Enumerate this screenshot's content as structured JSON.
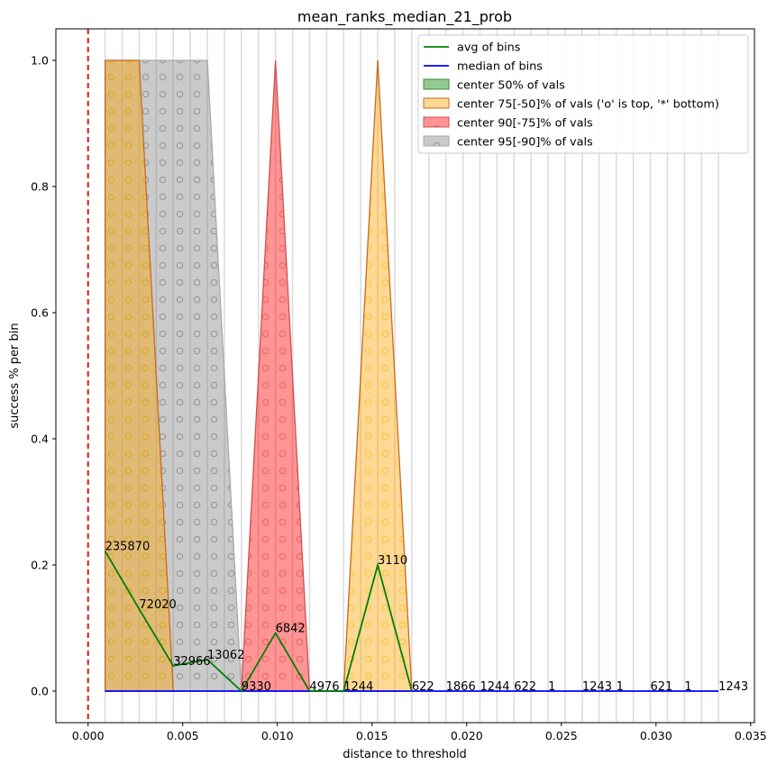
{
  "chart_data": {
    "type": "area",
    "title": "mean_ranks_median_21_prob",
    "xlabel": "distance to threshold",
    "ylabel": "success % per bin",
    "xlim": [
      -0.0017,
      0.0352
    ],
    "ylim": [
      -0.05,
      1.05
    ],
    "x_ticks": [
      0.0,
      0.005,
      0.01,
      0.015,
      0.02,
      0.025,
      0.03,
      0.035
    ],
    "x_tick_labels": [
      "0.000",
      "0.005",
      "0.010",
      "0.015",
      "0.020",
      "0.025",
      "0.030",
      "0.035"
    ],
    "y_ticks": [
      0.0,
      0.2,
      0.4,
      0.6,
      0.8,
      1.0
    ],
    "y_tick_labels": [
      "0.0",
      "0.2",
      "0.4",
      "0.6",
      "0.8",
      "1.0"
    ],
    "threshold_line_x": 0.0,
    "bin_gridlines": [
      0.0009,
      0.0018,
      0.0027,
      0.0036,
      0.0045,
      0.0054,
      0.0063,
      0.0072,
      0.0081,
      0.009,
      0.0099,
      0.0108,
      0.0117,
      0.0126,
      0.0135,
      0.0144,
      0.0153,
      0.0162,
      0.0171,
      0.018,
      0.0189,
      0.0198,
      0.0207,
      0.0216,
      0.0225,
      0.0234,
      0.0243,
      0.0252,
      0.0261,
      0.027,
      0.0279,
      0.0288,
      0.0297,
      0.0306,
      0.0315,
      0.0324,
      0.0333
    ],
    "legend_position": "top-right",
    "legend": [
      {
        "label": "avg of bins",
        "kind": "line",
        "color": "#008000"
      },
      {
        "label": "median of bins",
        "kind": "line",
        "color": "#0000ff"
      },
      {
        "label": "center 50% of vals",
        "kind": "patch",
        "color": "#008000"
      },
      {
        "label": "center 75[-50]% of vals ('o' is top, '*' bottom)",
        "kind": "patch",
        "color": "#ffa500"
      },
      {
        "label": "center 90[-75]% of vals",
        "kind": "patch",
        "color": "#ff0000"
      },
      {
        "label": "center 95[-90]% of vals",
        "kind": "patch",
        "color": "#808080"
      }
    ],
    "series": [
      {
        "name": "avg of bins",
        "color": "#008000",
        "x": [
          0.0009,
          0.0027,
          0.0045,
          0.0063,
          0.0081,
          0.0099,
          0.0117,
          0.0135,
          0.0153,
          0.0171
        ],
        "y": [
          0.222,
          0.13,
          0.04,
          0.05,
          0.0,
          0.092,
          0.0,
          0.0,
          0.2,
          0.0
        ]
      },
      {
        "name": "median of bins",
        "color": "#0000ff",
        "x": [
          0.0009,
          0.0333
        ],
        "y": [
          0.0,
          0.0
        ]
      }
    ],
    "bands": [
      {
        "name": "center 95[-90]% of vals",
        "color": "#808080",
        "points": [
          [
            0.0009,
            1.0
          ],
          [
            0.0063,
            1.0
          ],
          [
            0.0081,
            0.0
          ],
          [
            0.0009,
            0.0
          ]
        ]
      },
      {
        "name": "center 75[-50]% of vals ('o' is top, '*' bottom)",
        "color": "#ffa500",
        "points": [
          [
            0.0009,
            1.0
          ],
          [
            0.0027,
            1.0
          ],
          [
            0.0045,
            0.0
          ],
          [
            0.0009,
            0.0
          ]
        ]
      },
      {
        "name": "center 90[-75]% of vals",
        "color": "#ff0000",
        "points": [
          [
            0.0081,
            0.0
          ],
          [
            0.0099,
            1.0
          ],
          [
            0.0117,
            0.0
          ]
        ]
      },
      {
        "name": "center 75[-50]% of vals ('o' is top, '*' bottom)",
        "color": "#ffa500",
        "points": [
          [
            0.0135,
            0.0
          ],
          [
            0.0153,
            1.0
          ],
          [
            0.0171,
            0.0
          ]
        ]
      }
    ],
    "annotations": [
      {
        "x": 0.0009,
        "y": 0.222,
        "text": "235870"
      },
      {
        "x": 0.0027,
        "y": 0.13,
        "text": "72020"
      },
      {
        "x": 0.0045,
        "y": 0.04,
        "text": "32966"
      },
      {
        "x": 0.0063,
        "y": 0.05,
        "text": "13062"
      },
      {
        "x": 0.0081,
        "y": 0.0,
        "text": "9330"
      },
      {
        "x": 0.0099,
        "y": 0.092,
        "text": "6842"
      },
      {
        "x": 0.0117,
        "y": 0.0,
        "text": "4976"
      },
      {
        "x": 0.0135,
        "y": 0.0,
        "text": "1244"
      },
      {
        "x": 0.0153,
        "y": 0.2,
        "text": "3110"
      },
      {
        "x": 0.0171,
        "y": 0.0,
        "text": "622"
      },
      {
        "x": 0.0189,
        "y": 0.0,
        "text": "1866"
      },
      {
        "x": 0.0207,
        "y": 0.0,
        "text": "1244"
      },
      {
        "x": 0.0225,
        "y": 0.0,
        "text": "622"
      },
      {
        "x": 0.0243,
        "y": 0.0,
        "text": "1"
      },
      {
        "x": 0.0261,
        "y": 0.0,
        "text": "1243"
      },
      {
        "x": 0.0279,
        "y": 0.0,
        "text": "1"
      },
      {
        "x": 0.0297,
        "y": 0.0,
        "text": "621"
      },
      {
        "x": 0.0315,
        "y": 0.0,
        "text": "1"
      },
      {
        "x": 0.0333,
        "y": 0.0,
        "text": "1243"
      }
    ]
  }
}
